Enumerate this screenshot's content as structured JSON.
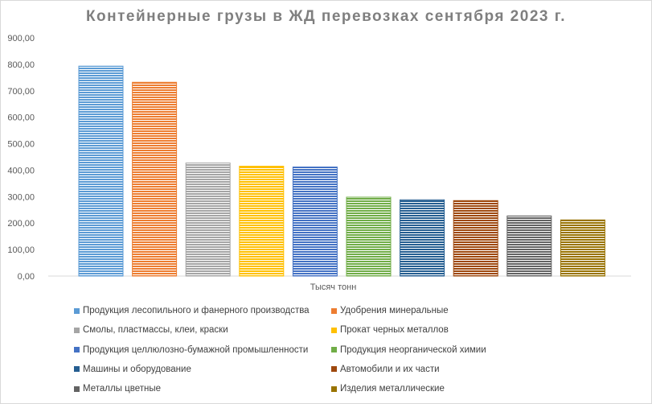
{
  "chart_data": {
    "type": "bar",
    "title": "Контейнерные грузы в ЖД перевозках сентября 2023 г.",
    "xlabel": "Тысяч тонн",
    "ylabel": "",
    "ylim": [
      0,
      900
    ],
    "yticks": [
      "0,00",
      "100,00",
      "200,00",
      "300,00",
      "400,00",
      "500,00",
      "600,00",
      "700,00",
      "800,00",
      "900,00"
    ],
    "grid": false,
    "legend_position": "bottom",
    "series": [
      {
        "name": "Продукция  лесопильного и фанерного производства",
        "value": 793,
        "color": "#5b9bd5"
      },
      {
        "name": "Удобрения  минеральные",
        "value": 732,
        "color": "#ed7d31"
      },
      {
        "name": "Смолы, пластмассы, клеи, краски",
        "value": 427,
        "color": "#a5a5a5"
      },
      {
        "name": "Прокат черных металлов",
        "value": 415,
        "color": "#ffc000"
      },
      {
        "name": "Продукция  целлюлозно-бумажной промышленности",
        "value": 412,
        "color": "#4472c4"
      },
      {
        "name": "Продукция  неорганической химии",
        "value": 298,
        "color": "#70ad47"
      },
      {
        "name": "Машины и оборудование",
        "value": 288,
        "color": "#255e91"
      },
      {
        "name": "Автомобили  и их части",
        "value": 285,
        "color": "#9e480e"
      },
      {
        "name": "Металлы цветные",
        "value": 227,
        "color": "#636363"
      },
      {
        "name": "Изделия  металлические",
        "value": 212,
        "color": "#997300"
      }
    ]
  }
}
